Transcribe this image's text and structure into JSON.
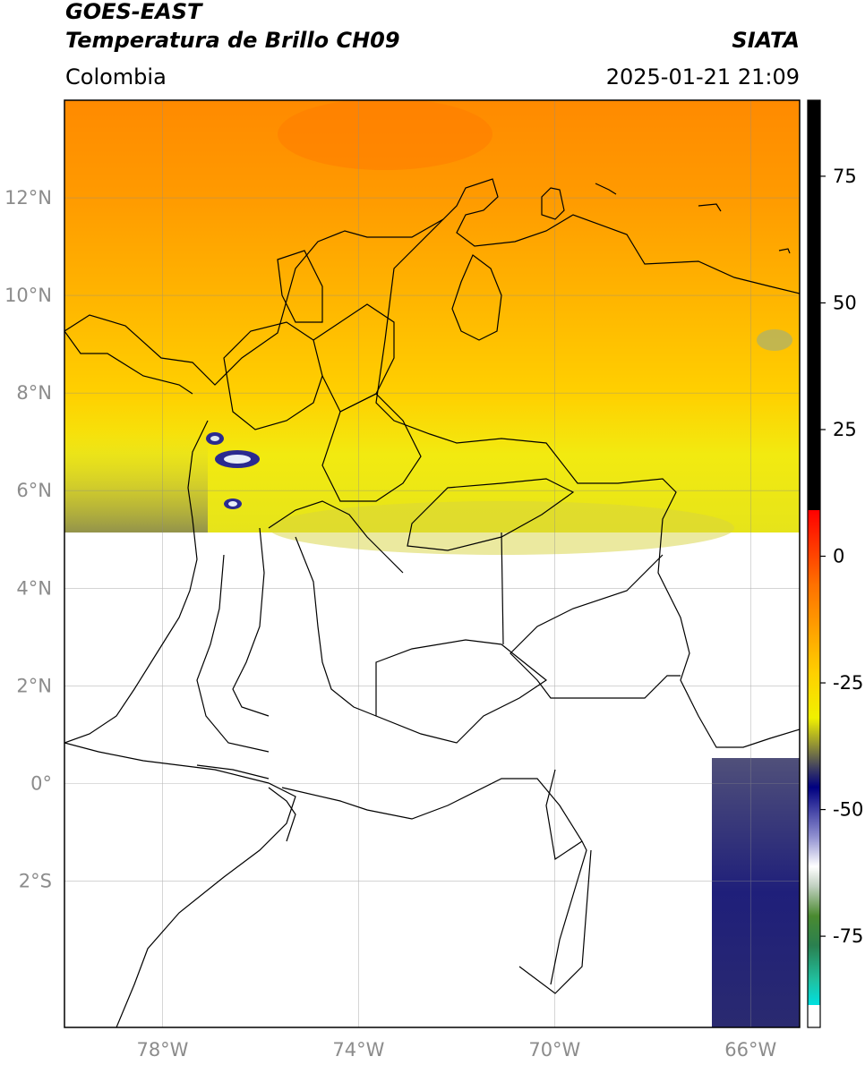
{
  "header": {
    "satellite": "GOES-EAST",
    "product": "Temperatura de Brillo CH09",
    "brand": "SIATA",
    "region": "Colombia",
    "timestamp": "2025-01-21 21:09"
  },
  "map": {
    "lon_range": [
      -80.0,
      -65.0
    ],
    "lat_range": [
      -5.0,
      14.0
    ],
    "lat_ticks": [
      {
        "value": 12,
        "label": "12°N"
      },
      {
        "value": 10,
        "label": "10°N"
      },
      {
        "value": 8,
        "label": "8°N"
      },
      {
        "value": 6,
        "label": "6°N"
      },
      {
        "value": 4,
        "label": "4°N"
      },
      {
        "value": 2,
        "label": "2°N"
      },
      {
        "value": 0,
        "label": "0°"
      },
      {
        "value": -2,
        "label": "2°S"
      }
    ],
    "lon_ticks": [
      {
        "value": -78,
        "label": "78°W"
      },
      {
        "value": -74,
        "label": "74°W"
      },
      {
        "value": -70,
        "label": "70°W"
      },
      {
        "value": -66,
        "label": "66°W"
      }
    ],
    "grid": true,
    "data_coverage_south_edge_lat": 5.2,
    "colors": {
      "warm_orange": "#ff8c00",
      "yellow": "#ffd700",
      "cold_blue": "#1a1a80",
      "border": "#000000"
    }
  },
  "colorbar": {
    "ticks": [
      {
        "value": 75,
        "label": "75"
      },
      {
        "value": 50,
        "label": "50"
      },
      {
        "value": 25,
        "label": "25"
      },
      {
        "value": 0,
        "label": "0"
      },
      {
        "value": -25,
        "label": "-25"
      },
      {
        "value": -50,
        "label": "-50"
      },
      {
        "value": -75,
        "label": "-75"
      }
    ],
    "range": [
      -93,
      90
    ]
  }
}
